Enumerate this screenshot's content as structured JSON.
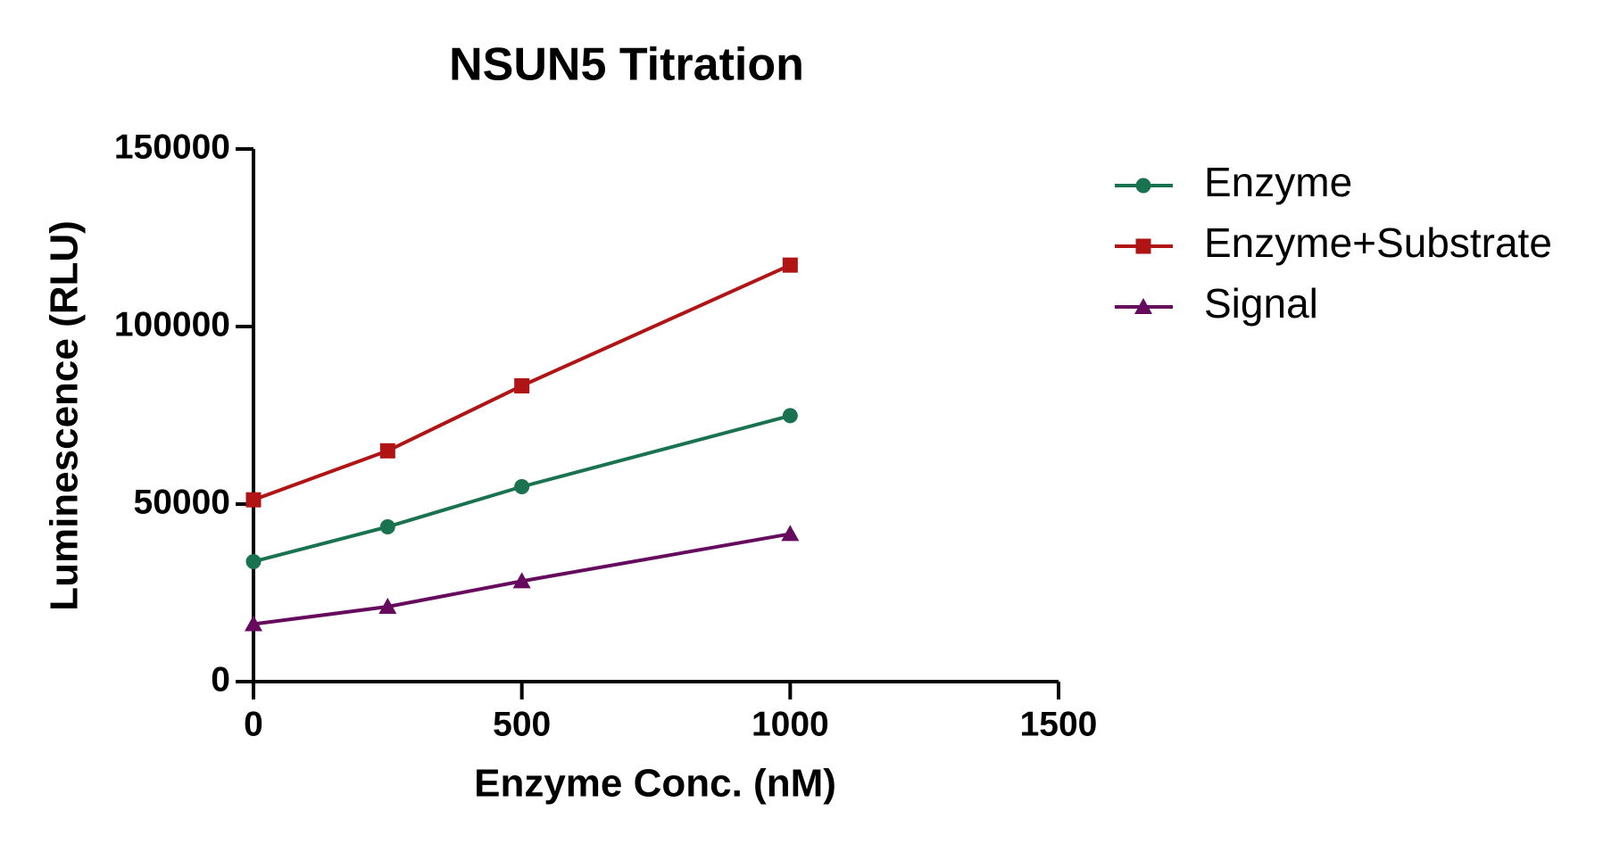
{
  "chart_data": {
    "type": "line",
    "title": "NSUN5 Titration",
    "x_label": "Enzyme Conc. (nM)",
    "y_label": "Luminescence (RLU)",
    "x": [
      0,
      250,
      500,
      1000
    ],
    "series": [
      {
        "name": "Enzyme",
        "color": "#1a7350",
        "marker": "circle",
        "values": [
          33800,
          43600,
          54900,
          74900
        ]
      },
      {
        "name": "Enzyme+Substrate",
        "color": "#b01414",
        "marker": "square",
        "values": [
          51200,
          65000,
          83300,
          117300
        ]
      },
      {
        "name": "Signal",
        "color": "#660a5e",
        "marker": "triangle",
        "values": [
          16200,
          21100,
          28300,
          41600
        ]
      }
    ],
    "xlim": [
      0,
      1500
    ],
    "xticks": [
      0,
      500,
      1000,
      1500
    ],
    "ylim": [
      0,
      150000
    ],
    "yticks": [
      0,
      50000,
      100000,
      150000
    ],
    "grid": false,
    "legend": "right"
  }
}
